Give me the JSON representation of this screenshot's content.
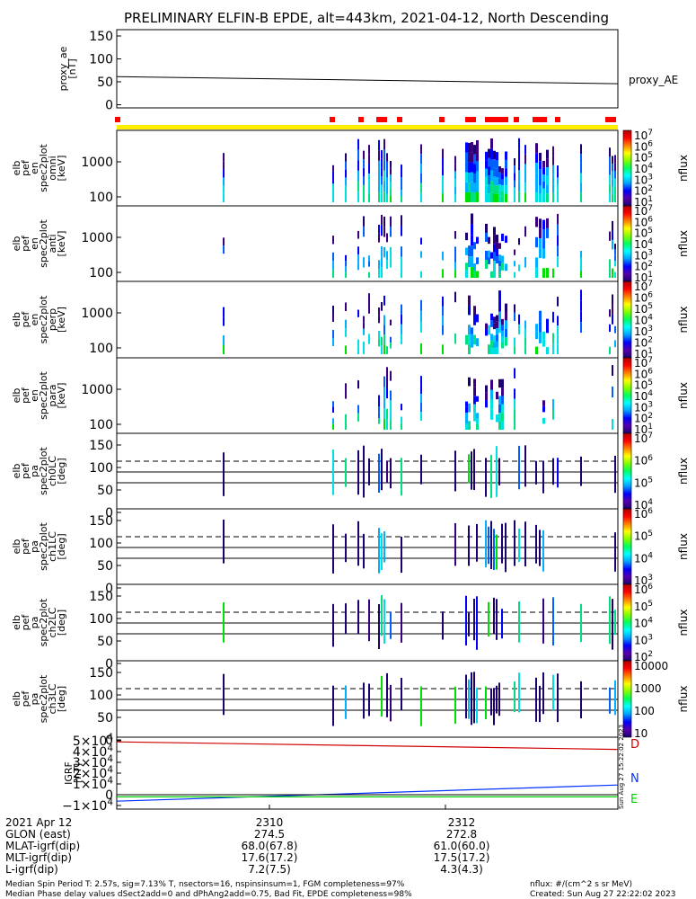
{
  "title": "PRELIMINARY ELFIN-B EPDE, alt=443km, 2021-04-12, North Descending",
  "panels": [
    {
      "name": "proxy-ae",
      "ylabel": [
        "proxy_ae",
        "[nT]"
      ],
      "yticks": [
        "150",
        "100",
        "50",
        "0"
      ],
      "label_right": "proxy_AE",
      "ylim": [
        -10,
        160
      ]
    },
    {
      "name": "omni",
      "ylabel": [
        "elb",
        "pef",
        "en",
        "spec2plot",
        "omni",
        "[keV]"
      ],
      "yticks": [
        "1000",
        "100"
      ],
      "colorbar_ticks": [
        "10^7",
        "10^6",
        "10^5",
        "10^4",
        "10^3",
        "10^2",
        "10^1"
      ],
      "cbar_label": "nflux"
    },
    {
      "name": "anti",
      "ylabel": [
        "elb",
        "pef",
        "en",
        "spec2plot",
        "anti",
        "[keV]"
      ],
      "yticks": [
        "1000",
        "100"
      ],
      "colorbar_ticks": [
        "10^7",
        "10^6",
        "10^5",
        "10^4",
        "10^3",
        "10^2",
        "10^1"
      ],
      "cbar_label": "nflux"
    },
    {
      "name": "perp",
      "ylabel": [
        "elb",
        "pef",
        "en",
        "spec2plot",
        "perp",
        "[keV]"
      ],
      "yticks": [
        "1000",
        "100"
      ],
      "colorbar_ticks": [
        "10^7",
        "10^6",
        "10^5",
        "10^4",
        "10^3",
        "10^2",
        "10^1"
      ],
      "cbar_label": "nflux"
    },
    {
      "name": "para",
      "ylabel": [
        "elb",
        "pef",
        "en",
        "spec2plot",
        "para",
        "[keV]"
      ],
      "yticks": [
        "1000",
        "100"
      ],
      "colorbar_ticks": [
        "10^7",
        "10^6",
        "10^5",
        "10^4",
        "10^3",
        "10^2",
        "10^1"
      ],
      "cbar_label": "nflux"
    },
    {
      "name": "ch0lc",
      "ylabel": [
        "elb",
        "pef",
        "pa",
        "spec2plot",
        "ch0LC",
        "[deg]"
      ],
      "yticks": [
        "150",
        "100",
        "50",
        "0"
      ],
      "colorbar_ticks": [
        "10^7",
        "10^6",
        "10^5",
        "10^4"
      ],
      "cbar_label": "nflux"
    },
    {
      "name": "ch1lc",
      "ylabel": [
        "elb",
        "pef",
        "pa",
        "spec2plot",
        "ch1LC",
        "[deg]"
      ],
      "yticks": [
        "150",
        "100",
        "50",
        "0"
      ],
      "colorbar_ticks": [
        "10^6",
        "10^5",
        "10^4",
        "10^3"
      ],
      "cbar_label": "nflux"
    },
    {
      "name": "ch2lc",
      "ylabel": [
        "elb",
        "pef",
        "pa",
        "spec2plot",
        "ch2LC",
        "[deg]"
      ],
      "yticks": [
        "150",
        "100",
        "50",
        "0"
      ],
      "colorbar_ticks": [
        "10^6",
        "10^5",
        "10^4",
        "10^3",
        "10^2"
      ],
      "cbar_label": "nflux"
    },
    {
      "name": "ch3lc",
      "ylabel": [
        "elb",
        "pef",
        "pa",
        "spec2plot",
        "ch3LC",
        "[deg]"
      ],
      "yticks": [
        "150",
        "100",
        "50",
        "0"
      ],
      "colorbar_ticks": [
        "10000",
        "1000",
        "100",
        "10"
      ],
      "cbar_label": "nflux"
    },
    {
      "name": "igrf",
      "ylabel": [
        "IGRF",
        "[nT]"
      ],
      "yticks": [
        "5×10^4",
        "4×10^4",
        "3×10^4",
        "2×10^4",
        "1×10^4",
        "0",
        "−1×10^4"
      ],
      "legend": [
        "D",
        "N",
        "E"
      ]
    }
  ],
  "footer": {
    "rows": [
      {
        "label": "2021 Apr 12",
        "v1": "2310",
        "v2": "2312"
      },
      {
        "label": "GLON (east)",
        "v1": "274.5",
        "v2": "272.8"
      },
      {
        "label": "MLAT-igrf(dip)",
        "v1": "68.0(67.8)",
        "v2": "61.0(60.0)"
      },
      {
        "label": "MLT-igrf(dip)",
        "v1": "17.6(17.2)",
        "v2": "17.5(17.2)"
      },
      {
        "label": "L-igrf(dip)",
        "v1": "7.2(7.5)",
        "v2": "4.3(4.3)"
      }
    ],
    "note1": "Median Spin Period T: 2.57s, sig=7.13% T, nsectors=16, nspinsinsum=1, FGM completeness=97%",
    "note2": "Median Phase delay values dSect2add=0 and dPhAng2add=0.75, Bad Fit, EPDE completeness=98%",
    "nflux_units": "nflux: #/(cm^2 s sr MeV)",
    "created": "Created: Sun Aug 27 22:22:02 2023",
    "side_stamp": "Sun Aug 27 15:22:02 2023"
  },
  "chart_data": {
    "type": "heatmap",
    "title": "PRELIMINARY ELFIN-B EPDE, alt=443km, 2021-04-12, North Descending",
    "x_ticks": [
      "2310",
      "2312"
    ],
    "proxy_ae": {
      "x": [
        0,
        1
      ],
      "y": [
        62,
        46
      ]
    },
    "igrf": {
      "D": {
        "x": [
          0,
          1
        ],
        "y": [
          49000,
          42000
        ]
      },
      "N": {
        "x": [
          0,
          1
        ],
        "y": [
          -6000,
          9000
        ]
      },
      "E": {
        "x": [
          0,
          1
        ],
        "y": [
          -2000,
          -2000
        ]
      }
    },
    "colors": {
      "D": "#d00000",
      "N": "#0033ff",
      "E": "#00cc00",
      "bar_yellow": "#ffee00",
      "bar_red": "#ff0000"
    }
  }
}
